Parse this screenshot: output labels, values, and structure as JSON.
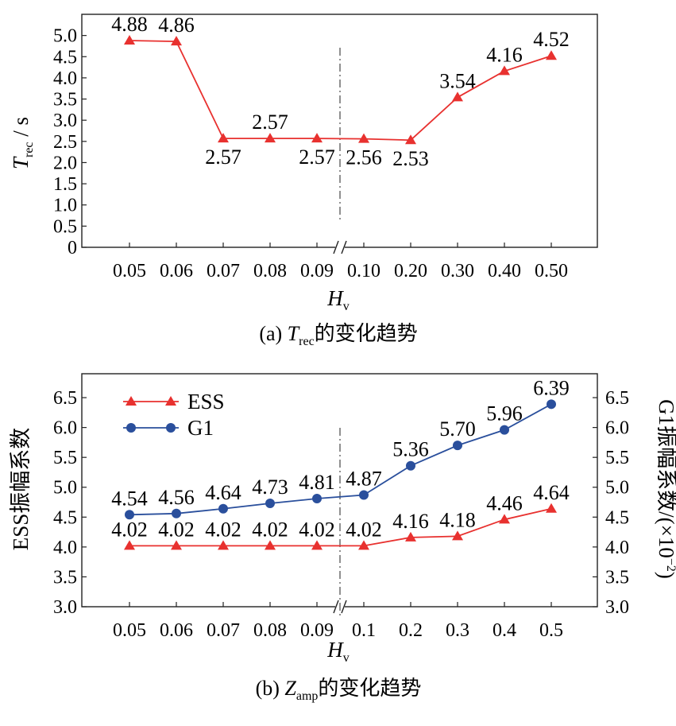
{
  "chart_data": [
    {
      "type": "line",
      "panel": "a",
      "caption_prefix": "(a) ",
      "caption_var": "T",
      "caption_sub": "rec",
      "caption_suffix": "的变化趋势",
      "ylabel_var": "T",
      "ylabel_sub": "rec",
      "ylabel_unit": " / s",
      "xlabel_var": "H",
      "xlabel_sub": "v",
      "categories": [
        "0.05",
        "0.06",
        "0.07",
        "0.08",
        "0.09",
        "0.10",
        "0.20",
        "0.30",
        "0.40",
        "0.50"
      ],
      "ylim": [
        0,
        5.5
      ],
      "yticks": [
        "0",
        "0.5",
        "1.0",
        "1.5",
        "2.0",
        "2.5",
        "3.0",
        "3.5",
        "4.0",
        "4.5",
        "5.0"
      ],
      "axis_break_between": [
        "0.09",
        "0.10"
      ],
      "series": [
        {
          "values": [
            4.88,
            4.86,
            2.57,
            2.57,
            2.57,
            2.56,
            2.53,
            3.54,
            4.16,
            4.52
          ],
          "labels": [
            "4.88",
            "4.86",
            "2.57",
            "2.57",
            "2.57",
            "2.56",
            "2.53",
            "3.54",
            "4.16",
            "4.52"
          ],
          "marker": "triangle",
          "color": "#e8312f"
        }
      ]
    },
    {
      "type": "line",
      "panel": "b",
      "caption_prefix": "(b) ",
      "caption_var": "Z",
      "caption_sub": "amp",
      "caption_suffix": "的变化趋势",
      "ylabel_left": "ESS振幅系数",
      "ylabel_right": "G1振幅系数/(×10",
      "ylabel_right_exp": "−2",
      "ylabel_right_close": ")",
      "xlabel_var": "H",
      "xlabel_sub": "v",
      "categories": [
        "0.05",
        "0.06",
        "0.07",
        "0.08",
        "0.09",
        "0.1",
        "0.2",
        "0.3",
        "0.4",
        "0.5"
      ],
      "ylim": [
        3.0,
        6.9
      ],
      "yticks": [
        "3.0",
        "3.5",
        "4.0",
        "4.5",
        "5.0",
        "5.5",
        "6.0",
        "6.5"
      ],
      "axis_break_between": [
        "0.09",
        "0.1"
      ],
      "legend": "top-left",
      "series": [
        {
          "name": "ESS",
          "values": [
            4.02,
            4.02,
            4.02,
            4.02,
            4.02,
            4.02,
            4.16,
            4.18,
            4.46,
            4.64
          ],
          "labels": [
            "4.02",
            "4.02",
            "4.02",
            "4.02",
            "4.02",
            "4.02",
            "4.16",
            "4.18",
            "4.46",
            "4.64"
          ],
          "marker": "triangle",
          "color": "#e8312f"
        },
        {
          "name": "G1",
          "values": [
            4.54,
            4.56,
            4.64,
            4.73,
            4.81,
            4.87,
            5.36,
            5.7,
            5.96,
            6.39
          ],
          "labels": [
            "4.54",
            "4.56",
            "4.64",
            "4.73",
            "4.81",
            "4.87",
            "5.36",
            "5.70",
            "5.96",
            "6.39"
          ],
          "marker": "circle",
          "color": "#2a4f9c"
        }
      ]
    }
  ]
}
